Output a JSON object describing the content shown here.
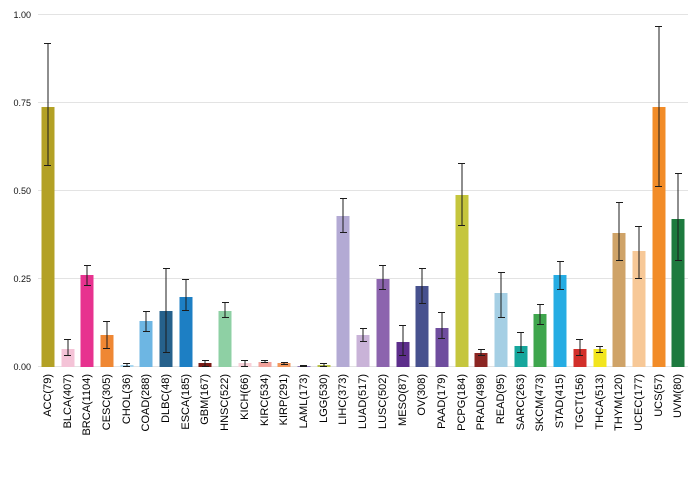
{
  "chart_data": {
    "type": "bar",
    "title": "",
    "xlabel": "",
    "ylabel": "",
    "ylim": [
      0,
      1.0
    ],
    "yticks": [
      0,
      0.25,
      0.5,
      0.75,
      1.0
    ],
    "ytick_labels": [
      "0.00",
      "0.25",
      "0.50",
      "0.75",
      "1.00"
    ],
    "grid": true,
    "legend": "none",
    "error_bars": true,
    "categories": [
      "ACC(79)",
      "BLCA(407)",
      "BRCA(1104)",
      "CESC(305)",
      "CHOL(36)",
      "COAD(288)",
      "DLBC(48)",
      "ESCA(185)",
      "GBM(167)",
      "HNSC(522)",
      "KICH(66)",
      "KIRC(534)",
      "KIRP(291)",
      "LAML(173)",
      "LGG(530)",
      "LIHC(373)",
      "LUAD(517)",
      "LUSC(502)",
      "MESO(87)",
      "OV(308)",
      "PAAD(179)",
      "PCPG(184)",
      "PRAD(498)",
      "READ(95)",
      "SARC(263)",
      "SKCM(473)",
      "STAD(415)",
      "TGCT(156)",
      "THCA(513)",
      "THYM(120)",
      "UCEC(177)",
      "UCS(57)",
      "UVM(80)"
    ],
    "values": [
      0.74,
      0.05,
      0.26,
      0.09,
      0.005,
      0.13,
      0.16,
      0.2,
      0.01,
      0.16,
      0.01,
      0.015,
      0.01,
      0.003,
      0.005,
      0.43,
      0.09,
      0.25,
      0.07,
      0.23,
      0.11,
      0.49,
      0.04,
      0.21,
      0.06,
      0.15,
      0.26,
      0.05,
      0.05,
      0.38,
      0.33,
      0.74,
      0.42
    ],
    "error_low": [
      0.57,
      0.03,
      0.23,
      0.05,
      0.0,
      0.1,
      0.04,
      0.16,
      0.0,
      0.14,
      0.0,
      0.01,
      0.005,
      0.0,
      0.0,
      0.38,
      0.07,
      0.22,
      0.03,
      0.18,
      0.08,
      0.4,
      0.03,
      0.14,
      0.04,
      0.12,
      0.22,
      0.03,
      0.04,
      0.3,
      0.25,
      0.51,
      0.3
    ],
    "error_high": [
      0.92,
      0.08,
      0.29,
      0.13,
      0.01,
      0.16,
      0.28,
      0.25,
      0.02,
      0.185,
      0.02,
      0.02,
      0.015,
      0.006,
      0.01,
      0.48,
      0.11,
      0.29,
      0.12,
      0.28,
      0.155,
      0.58,
      0.05,
      0.27,
      0.1,
      0.18,
      0.3,
      0.08,
      0.06,
      0.47,
      0.4,
      0.97,
      0.55
    ],
    "colors": [
      "#b3a125",
      "#f4c3d7",
      "#e7328f",
      "#ef8733",
      "#a9d7f0",
      "#6db6e3",
      "#26618c",
      "#1d7fc4",
      "#7a1a15",
      "#8ed0a4",
      "#f8d0d8",
      "#f2a29b",
      "#f2975c",
      "#8e79b5",
      "#b8c24b",
      "#b3aad4",
      "#c9b3d8",
      "#8c64ae",
      "#5d2e8c",
      "#47518e",
      "#6f4d9e",
      "#c5c63d",
      "#8c2623",
      "#a5cfe4",
      "#16a69c",
      "#3fa64d",
      "#25ace3",
      "#d22f2a",
      "#f2e51f",
      "#cfa368",
      "#f7c897",
      "#f28c28",
      "#1d7a3e"
    ],
    "gridline_color": "#e3e3e3",
    "error_bar_color": "#1c1c1c",
    "background_color": "#ffffff"
  }
}
